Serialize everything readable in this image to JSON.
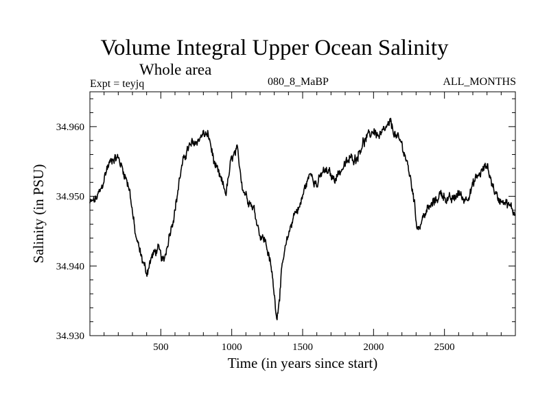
{
  "header": {
    "title": "Volume Integral Upper Ocean Salinity",
    "subtitle": "Whole area",
    "left_label": "Expt = teyjq",
    "center_label": "080_8_MaBP",
    "right_label": "ALL_MONTHS"
  },
  "chart_data": {
    "type": "line",
    "title": "Volume Integral Upper Ocean Salinity",
    "xlabel": "Time (in years since start)",
    "ylabel": "Salinity (in PSU)",
    "xlim": [
      0,
      3000
    ],
    "ylim": [
      34.93,
      34.965
    ],
    "xticks": [
      500,
      1000,
      1500,
      2000,
      2500
    ],
    "xtick_labels": [
      "500",
      "1000",
      "1500",
      "2000",
      "2500"
    ],
    "yticks": [
      34.93,
      34.94,
      34.95,
      34.96
    ],
    "ytick_labels": [
      "34.930",
      "34.940",
      "34.950",
      "34.960"
    ],
    "grid": false,
    "series": [
      {
        "name": "Salinity",
        "color": "#000000",
        "x": [
          0,
          40,
          80,
          120,
          160,
          200,
          240,
          280,
          320,
          360,
          400,
          440,
          480,
          520,
          560,
          600,
          640,
          680,
          720,
          760,
          800,
          840,
          880,
          920,
          960,
          1000,
          1040,
          1080,
          1120,
          1160,
          1200,
          1240,
          1280,
          1300,
          1320,
          1360,
          1400,
          1440,
          1480,
          1520,
          1560,
          1600,
          1640,
          1680,
          1720,
          1760,
          1800,
          1840,
          1880,
          1920,
          1960,
          2000,
          2040,
          2080,
          2120,
          2160,
          2200,
          2240,
          2280,
          2300,
          2320,
          2360,
          2400,
          2440,
          2480,
          2520,
          2560,
          2600,
          2640,
          2680,
          2720,
          2760,
          2800,
          2840,
          2880,
          2920,
          2960,
          3000
        ],
        "values": [
          34.949,
          34.9495,
          34.951,
          34.954,
          34.9555,
          34.9555,
          34.9535,
          34.951,
          34.9445,
          34.9415,
          34.939,
          34.9415,
          34.9425,
          34.9405,
          34.9445,
          34.948,
          34.9535,
          34.9565,
          34.9575,
          34.958,
          34.959,
          34.9585,
          34.9545,
          34.9525,
          34.9505,
          34.9555,
          34.9565,
          34.951,
          34.9495,
          34.948,
          34.9445,
          34.9435,
          34.9395,
          34.936,
          34.9325,
          34.9405,
          34.9445,
          34.9475,
          34.9485,
          34.9515,
          34.9535,
          34.9515,
          34.9535,
          34.9535,
          34.9525,
          34.9535,
          34.9545,
          34.9555,
          34.9555,
          34.9575,
          34.9585,
          34.9595,
          34.9585,
          34.9595,
          34.9605,
          34.9585,
          34.9575,
          34.9545,
          34.9505,
          34.9465,
          34.9455,
          34.9475,
          34.9485,
          34.9495,
          34.9505,
          34.9495,
          34.9495,
          34.9505,
          34.9495,
          34.9505,
          34.9525,
          34.9535,
          34.9545,
          34.9515,
          34.9495,
          34.9495,
          34.9485,
          34.9475
        ]
      }
    ]
  }
}
